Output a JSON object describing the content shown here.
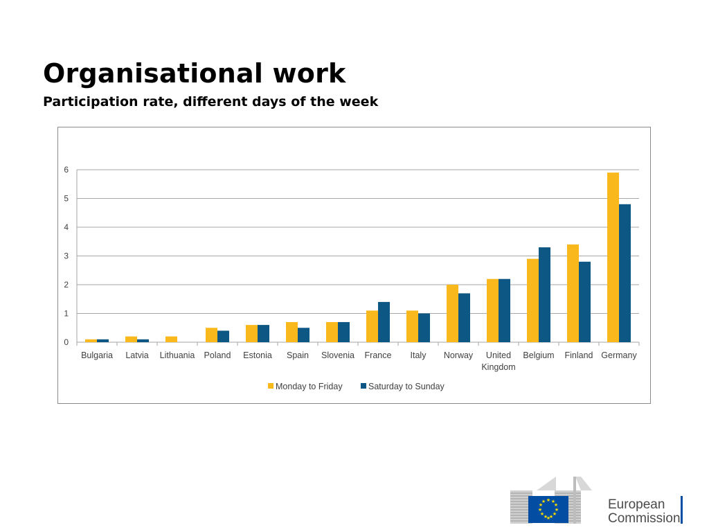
{
  "slide": {
    "title": "Organisational work",
    "subtitle": "Participation rate, different days of the week"
  },
  "chart_data": {
    "type": "bar",
    "title": "",
    "xlabel": "",
    "ylabel": "",
    "ylim": [
      0,
      6
    ],
    "yticks": [
      0,
      1,
      2,
      3,
      4,
      5,
      6
    ],
    "grid": true,
    "legend_position": "bottom",
    "categories": [
      "Bulgaria",
      "Latvia",
      "Lithuania",
      "Poland",
      "Estonia",
      "Spain",
      "Slovenia",
      "France",
      "Italy",
      "Norway",
      "United Kingdom",
      "Belgium",
      "Finland",
      "Germany"
    ],
    "category_label_lines": [
      [
        "Bulgaria"
      ],
      [
        "Latvia"
      ],
      [
        "Lithuania"
      ],
      [
        "Poland"
      ],
      [
        "Estonia"
      ],
      [
        "Spain"
      ],
      [
        "Slovenia"
      ],
      [
        "France"
      ],
      [
        "Italy"
      ],
      [
        "Norway"
      ],
      [
        "United",
        "Kingdom"
      ],
      [
        "Belgium"
      ],
      [
        "Finland"
      ],
      [
        "Germany"
      ]
    ],
    "series": [
      {
        "name": "Monday to Friday",
        "color": "#F9B81C",
        "values": [
          0.1,
          0.2,
          0.2,
          0.5,
          0.6,
          0.7,
          0.7,
          1.1,
          1.1,
          2.0,
          2.2,
          2.9,
          3.4,
          5.9
        ]
      },
      {
        "name": "Saturday to Sunday",
        "color": "#0D5784",
        "values": [
          0.1,
          0.1,
          0.0,
          0.4,
          0.6,
          0.5,
          0.7,
          1.4,
          1.0,
          1.7,
          2.2,
          3.3,
          2.8,
          4.8
        ]
      }
    ]
  },
  "footer": {
    "logo_line1": "European",
    "logo_line2": "Commission",
    "logo_icon": "eu-flag-icon"
  }
}
